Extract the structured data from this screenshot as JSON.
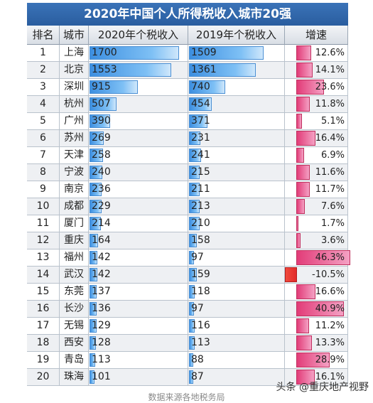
{
  "title": "2020年中国个人所得税收入城市20强",
  "headers": [
    "排名",
    "城市",
    "2020年个税收入",
    "2019年个税收入",
    "增速"
  ],
  "chart_data": {
    "type": "table",
    "title": "2020年中国个人所得税收入城市20强",
    "columns": [
      "排名",
      "城市",
      "2020年个税收入",
      "2019年个税收入",
      "增速"
    ],
    "rows": [
      {
        "rank": "1",
        "city": "上海",
        "v2020": 1700,
        "v2019": 1509,
        "growth": 12.6,
        "growth_label": "12.6%"
      },
      {
        "rank": "2",
        "city": "北京",
        "v2020": 1553,
        "v2019": 1361,
        "growth": 14.1,
        "growth_label": "14.1%"
      },
      {
        "rank": "3",
        "city": "深圳",
        "v2020": 915,
        "v2019": 740,
        "growth": 23.6,
        "growth_label": "23.6%"
      },
      {
        "rank": "4",
        "city": "杭州",
        "v2020": 507,
        "v2019": 454,
        "growth": 11.8,
        "growth_label": "11.8%"
      },
      {
        "rank": "5",
        "city": "广州",
        "v2020": 390,
        "v2019": 371,
        "growth": 5.1,
        "growth_label": "5.1%"
      },
      {
        "rank": "6",
        "city": "苏州",
        "v2020": 269,
        "v2019": 231,
        "growth": 16.4,
        "growth_label": "16.4%"
      },
      {
        "rank": "7",
        "city": "天津",
        "v2020": 258,
        "v2019": 241,
        "growth": 6.9,
        "growth_label": "6.9%"
      },
      {
        "rank": "8",
        "city": "宁波",
        "v2020": 240,
        "v2019": 215,
        "growth": 11.6,
        "growth_label": "11.6%"
      },
      {
        "rank": "9",
        "city": "南京",
        "v2020": 236,
        "v2019": 211,
        "growth": 11.7,
        "growth_label": "11.7%"
      },
      {
        "rank": "10",
        "city": "成都",
        "v2020": 229,
        "v2019": 213,
        "growth": 7.6,
        "growth_label": "7.6%"
      },
      {
        "rank": "11",
        "city": "厦门",
        "v2020": 214,
        "v2019": 210,
        "growth": 1.7,
        "growth_label": "1.7%"
      },
      {
        "rank": "12",
        "city": "重庆",
        "v2020": 164,
        "v2019": 158,
        "growth": 3.6,
        "growth_label": "3.6%"
      },
      {
        "rank": "13",
        "city": "福州",
        "v2020": 142,
        "v2019": 97,
        "growth": 46.3,
        "growth_label": "46.3%"
      },
      {
        "rank": "14",
        "city": "武汉",
        "v2020": 142,
        "v2019": 159,
        "growth": -10.5,
        "growth_label": "-10.5%"
      },
      {
        "rank": "15",
        "city": "东莞",
        "v2020": 137,
        "v2019": 118,
        "growth": 16.6,
        "growth_label": "16.6%"
      },
      {
        "rank": "16",
        "city": "长沙",
        "v2020": 136,
        "v2019": 97,
        "growth": 40.9,
        "growth_label": "40.9%"
      },
      {
        "rank": "17",
        "city": "无锡",
        "v2020": 129,
        "v2019": 116,
        "growth": 11.2,
        "growth_label": "11.2%"
      },
      {
        "rank": "18",
        "city": "西安",
        "v2020": 128,
        "v2019": 113,
        "growth": 13.3,
        "growth_label": "13.3%"
      },
      {
        "rank": "19",
        "city": "青岛",
        "v2020": 113,
        "v2019": 88,
        "growth": 28.9,
        "growth_label": "28.9%"
      },
      {
        "rank": "20",
        "city": "珠海",
        "v2020": 101,
        "v2019": 87,
        "growth": 16.1,
        "growth_label": "16.1%"
      }
    ],
    "bar_scale_max": 1700,
    "growth_scale_max": 46.3
  },
  "watermark": "头条 @重庆地产视野",
  "source": "数据来源各地税务局"
}
